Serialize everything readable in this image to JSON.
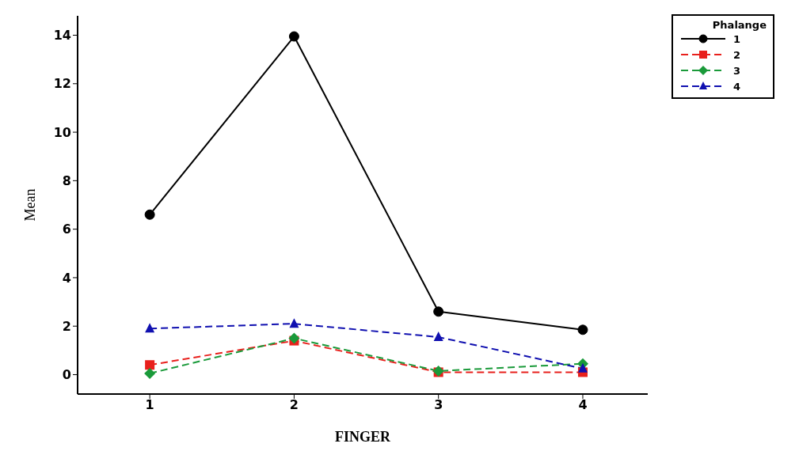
{
  "chart_data": {
    "type": "line",
    "xlabel": "FINGER",
    "ylabel": "Mean",
    "legend_title": "Phalange",
    "x": [
      1,
      2,
      3,
      4
    ],
    "xlim": [
      0.5,
      4.45
    ],
    "xticks": [
      1,
      2,
      3,
      4
    ],
    "ylim": [
      -0.8,
      14.8
    ],
    "yticks": [
      0,
      2,
      4,
      6,
      8,
      10,
      12,
      14
    ],
    "grid": false,
    "legend": "top right",
    "series": [
      {
        "name": "1",
        "color": "#000000",
        "marker": "circle",
        "line_style": "solid",
        "values": [
          6.6,
          13.95,
          2.6,
          1.85
        ]
      },
      {
        "name": "2",
        "color": "#e8201c",
        "marker": "square",
        "line_style": "dashed",
        "values": [
          0.4,
          1.4,
          0.1,
          0.1
        ]
      },
      {
        "name": "3",
        "color": "#1a9a3a",
        "marker": "diamond",
        "line_style": "dashed",
        "values": [
          0.05,
          1.5,
          0.15,
          0.45
        ]
      },
      {
        "name": "4",
        "color": "#1010b0",
        "marker": "triangle",
        "line_style": "dashed",
        "values": [
          1.9,
          2.1,
          1.55,
          0.25
        ]
      }
    ]
  }
}
